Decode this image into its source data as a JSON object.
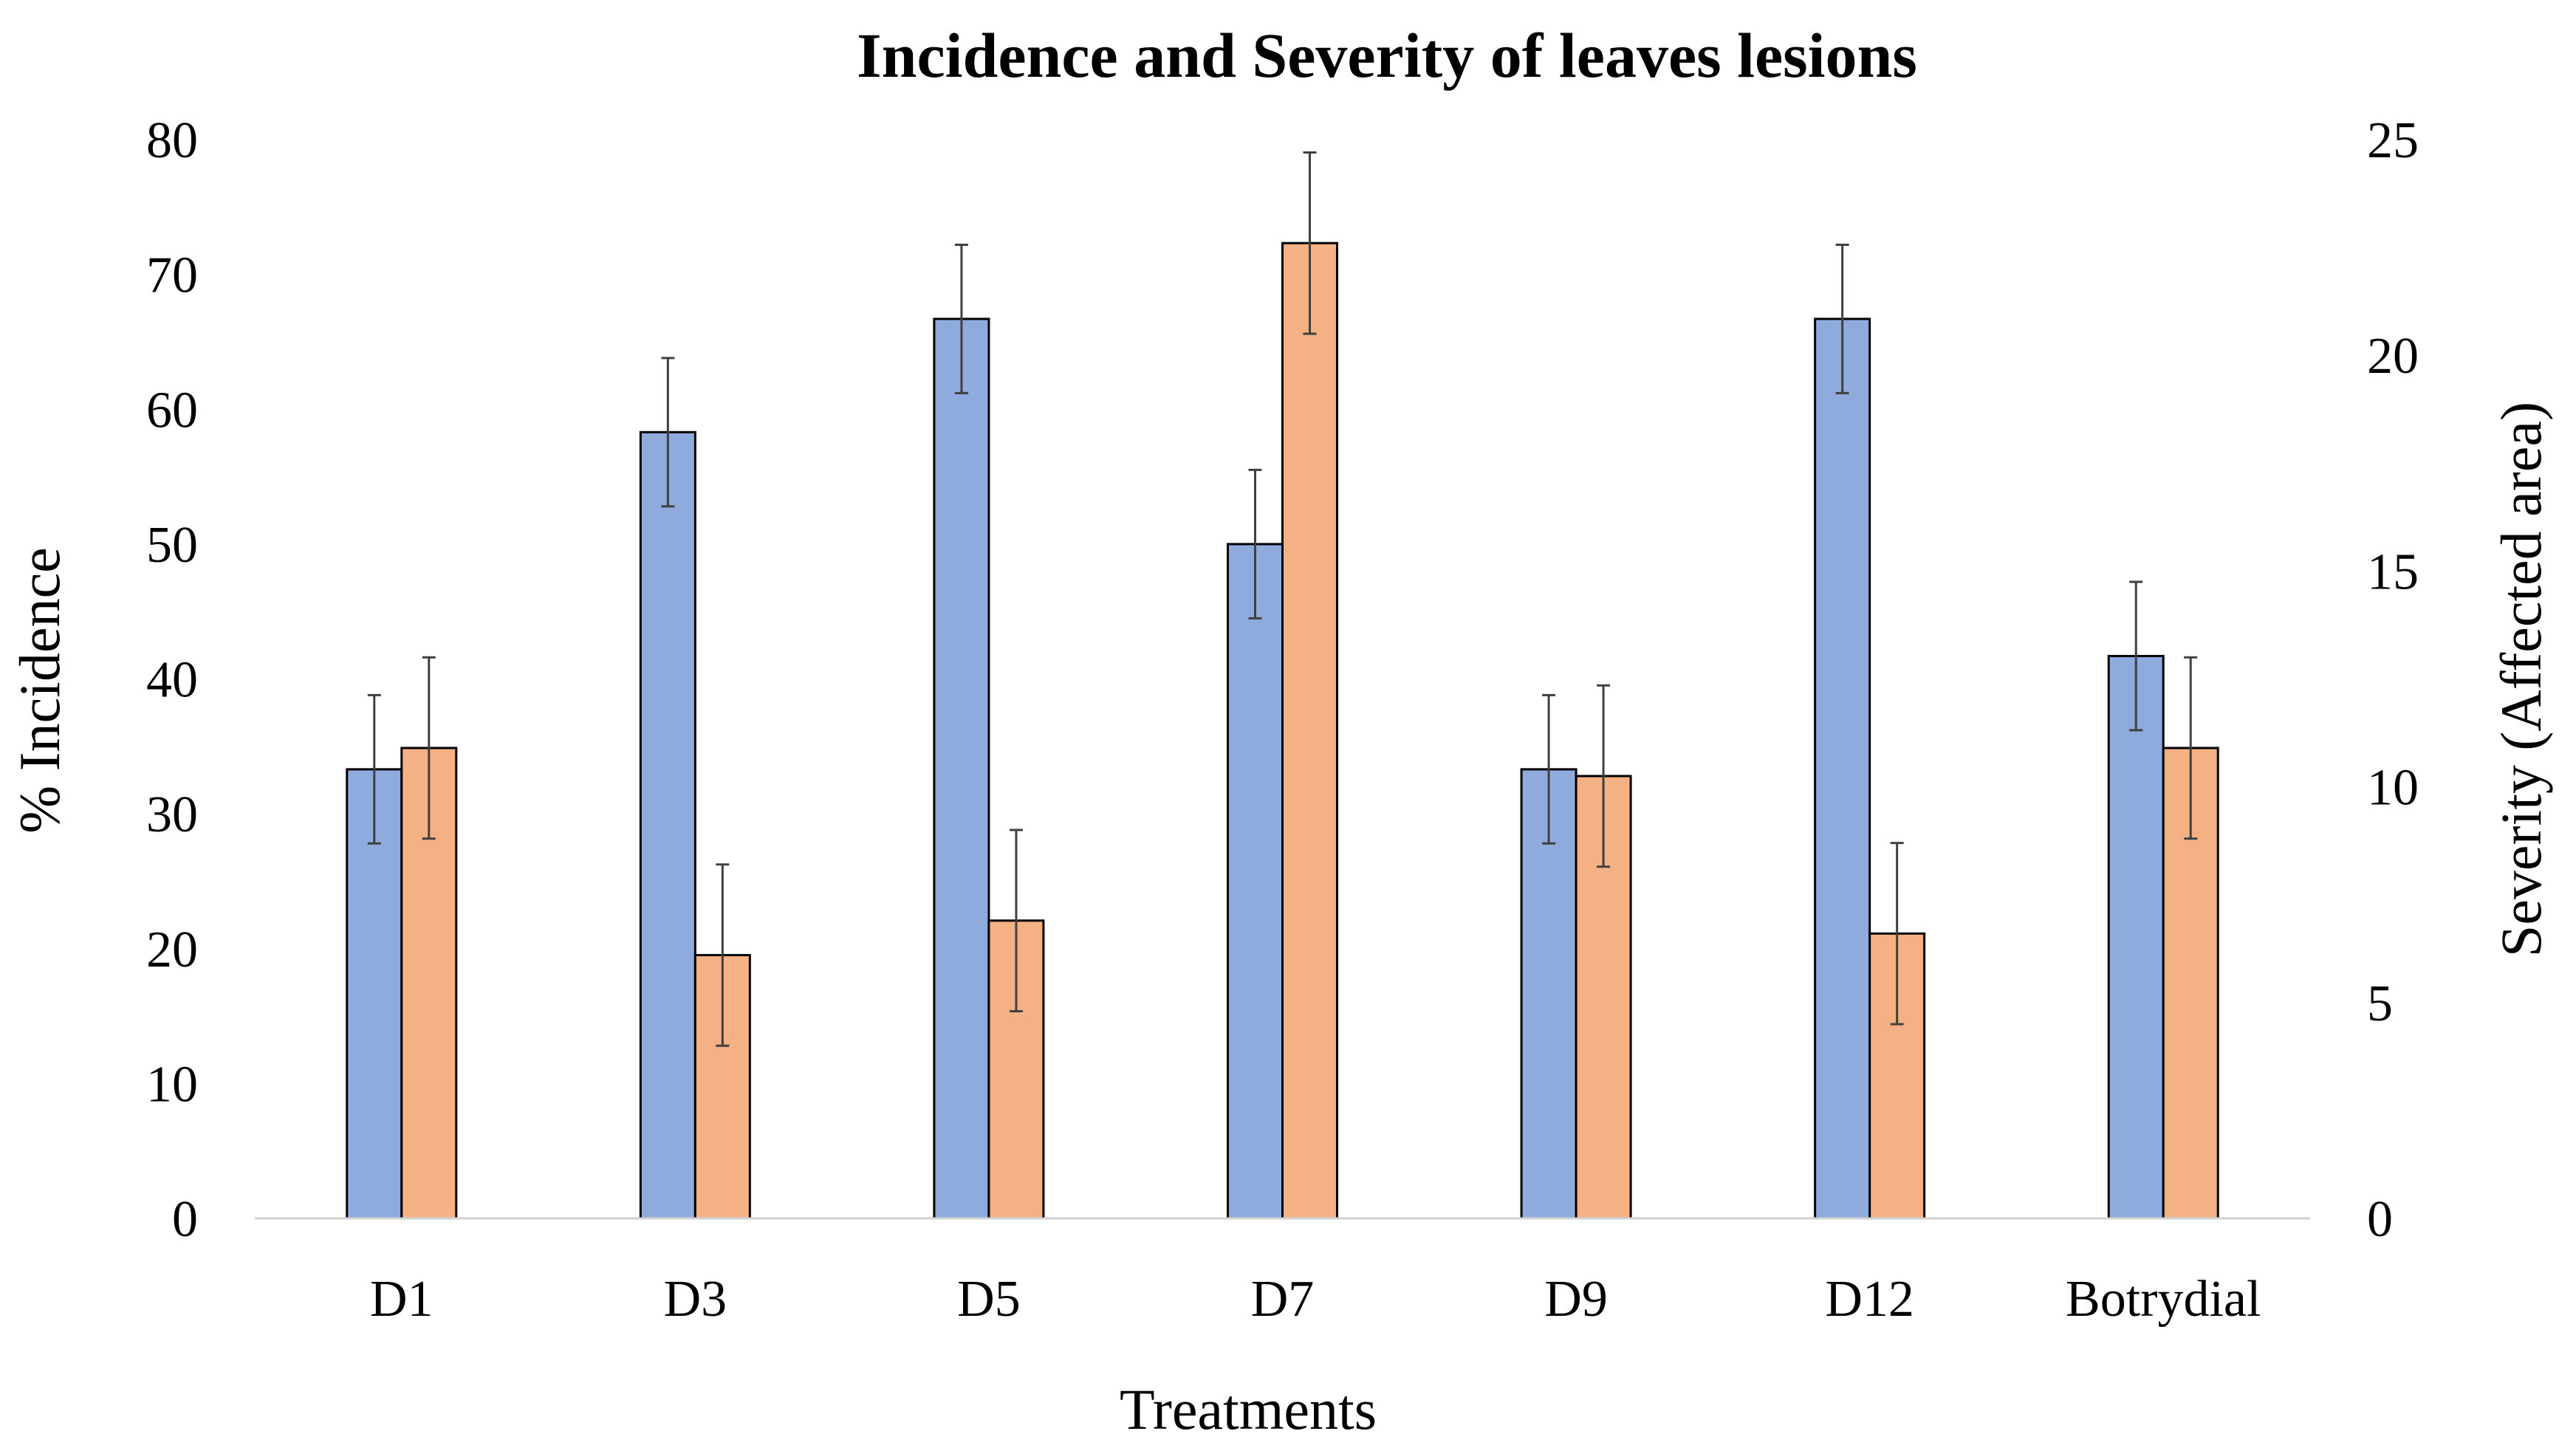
{
  "chart_data": {
    "type": "bar",
    "title": "Incidence and Severity of leaves lesions",
    "xlabel": "Treatments",
    "ylabel": "% Incidence",
    "y2label": "Severity (Affected area)",
    "categories": [
      "D1",
      "D3",
      "D5",
      "D7",
      "D9",
      "D12",
      "Botrydial"
    ],
    "ylim": [
      0,
      80
    ],
    "y2lim": [
      0,
      25
    ],
    "yticks": [
      "0",
      "10",
      "20",
      "30",
      "40",
      "50",
      "60",
      "70",
      "80"
    ],
    "y2ticks": [
      "0",
      "5",
      "10",
      "15",
      "20",
      "25"
    ],
    "grid": false,
    "legend": "none",
    "series": [
      {
        "name": "Incidence",
        "axis": "left",
        "color": "#8FAADC",
        "values": [
          33.3,
          58.3,
          66.7,
          50.0,
          33.3,
          66.7,
          41.7
        ],
        "errors": [
          5.5,
          5.5,
          5.5,
          5.5,
          5.5,
          5.5,
          5.5
        ]
      },
      {
        "name": "Severity",
        "axis": "right",
        "color": "#F4B183",
        "values": [
          10.9,
          6.1,
          6.9,
          22.6,
          10.25,
          6.6,
          10.9
        ],
        "errors": [
          2.1,
          2.1,
          2.1,
          2.1,
          2.1,
          2.1,
          2.1
        ]
      }
    ],
    "bar_edge_color": "#000000",
    "errorbar_color": "#404040"
  }
}
